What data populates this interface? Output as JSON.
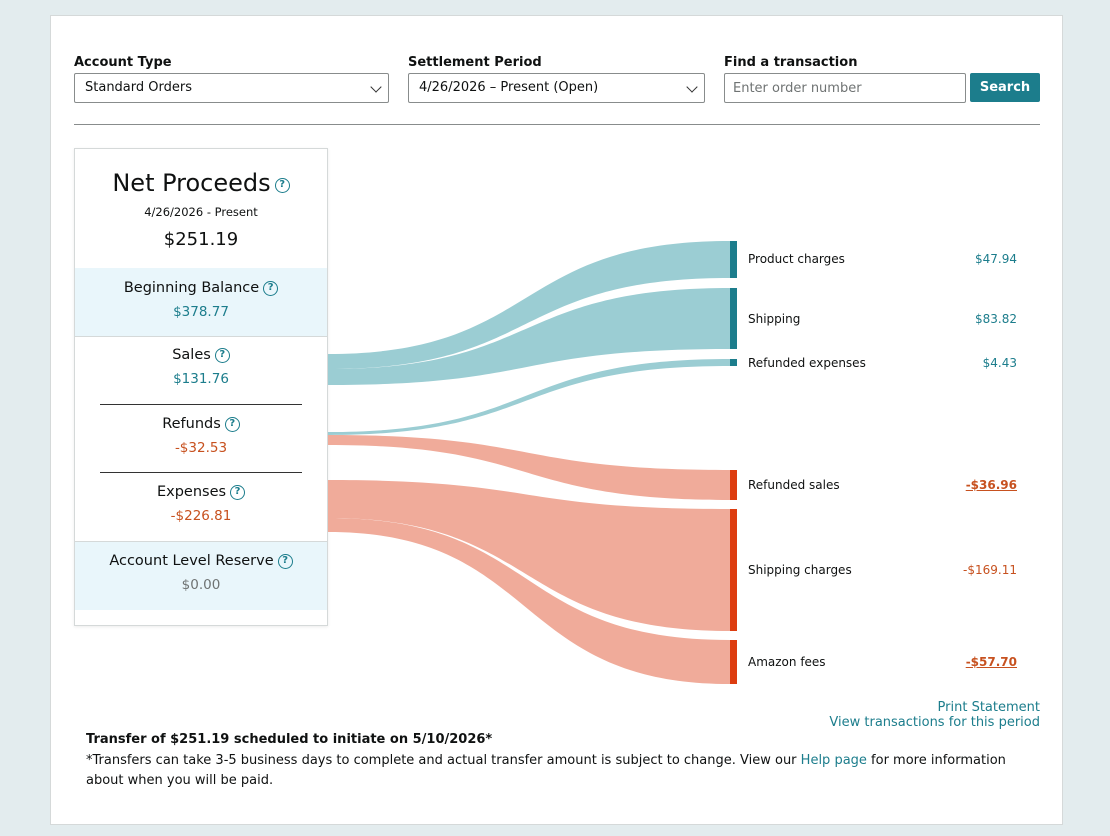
{
  "filters": {
    "account_type_label": "Account Type",
    "account_type_value": "Standard Orders",
    "settlement_label": "Settlement Period",
    "settlement_value": "4/26/2026 – Present (Open)",
    "find_label": "Find a transaction",
    "find_placeholder": "Enter order number",
    "search_button": "Search"
  },
  "summary": {
    "title": "Net Proceeds",
    "date_range": "4/26/2026 - Present",
    "total": "$251.19",
    "sections": [
      {
        "label": "Beginning Balance",
        "value": "$378.77"
      },
      {
        "label": "Sales",
        "value": "$131.76"
      },
      {
        "label": "Refunds",
        "value": "-$32.53"
      },
      {
        "label": "Expenses",
        "value": "-$226.81"
      },
      {
        "label": "Account Level Reserve",
        "value": "$0.00"
      }
    ]
  },
  "breakdown": [
    {
      "label": "Product charges",
      "value": "$47.94"
    },
    {
      "label": "Shipping",
      "value": "$83.82"
    },
    {
      "label": "Refunded expenses",
      "value": "$4.43"
    },
    {
      "label": "Refunded sales",
      "value": "-$36.96"
    },
    {
      "label": "Shipping charges",
      "value": "-$169.11"
    },
    {
      "label": "Amazon fees",
      "value": "-$57.70"
    }
  ],
  "colors": {
    "accent": "#1c7d8c",
    "positive_flow": "#9bcdd3",
    "negative_flow": "#f0ab9a",
    "negative_bar": "#dd3d10",
    "negative_text": "#c7511f"
  },
  "links": {
    "print": "Print Statement",
    "view": "View transactions for this period"
  },
  "footer": {
    "transfer": "Transfer of $251.19 scheduled to initiate on 5/10/2026*",
    "note_before": "*Transfers can take 3-5 business days to complete and actual transfer amount is subject to change. View our ",
    "help_link": "Help page",
    "note_after": " for more information about when you will be paid."
  }
}
